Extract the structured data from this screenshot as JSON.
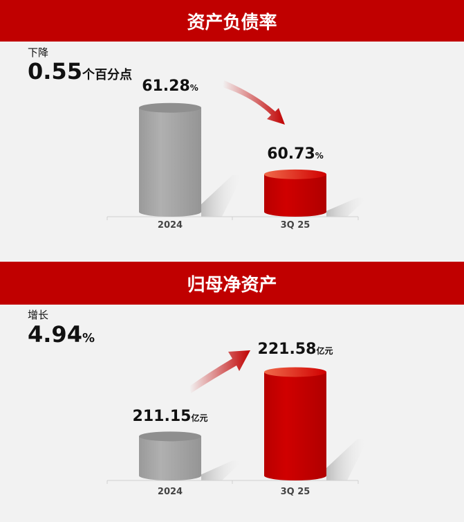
{
  "chart_data": [
    {
      "type": "bar",
      "title": "资产负债率",
      "categories": [
        "2024",
        "3Q 25"
      ],
      "values": [
        61.28,
        60.73
      ],
      "value_labels": [
        "61.28",
        "60.73"
      ],
      "unit": "%",
      "ylim": [
        60.38,
        61.45
      ],
      "change_label": "下降",
      "change_value": "0.55",
      "change_unit": "个百分点",
      "trend": "down",
      "colors": [
        "#a6a6a6",
        "#c00000"
      ]
    },
    {
      "type": "bar",
      "title": "归母净资产",
      "categories": [
        "2024",
        "3Q 25"
      ],
      "values": [
        211.15,
        221.58
      ],
      "value_labels": [
        "211.15",
        "221.58"
      ],
      "unit": "亿元",
      "ylim": [
        204,
        225
      ],
      "change_label": "增长",
      "change_value": "4.94",
      "change_unit": "%",
      "trend": "up",
      "colors": [
        "#a6a6a6",
        "#c00000"
      ]
    }
  ],
  "colors": {
    "header": "#c00000",
    "background": "#f2f2f2"
  }
}
